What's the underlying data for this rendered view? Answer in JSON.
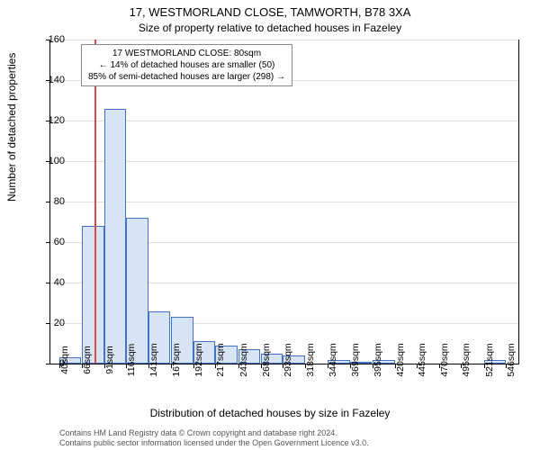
{
  "chart": {
    "type": "histogram",
    "title": "17, WESTMORLAND CLOSE, TAMWORTH, B78 3XA",
    "subtitle": "Size of property relative to detached houses in Fazeley",
    "ylabel": "Number of detached properties",
    "xlabel": "Distribution of detached houses by size in Fazeley",
    "background_color": "#ffffff",
    "grid_color": "#e0e0e0",
    "bar_fill": "#d6e4f5",
    "bar_stroke": "#4472c4",
    "marker_color": "#d94a4a",
    "title_fontsize": 13,
    "subtitle_fontsize": 12,
    "label_fontsize": 12,
    "tick_fontsize": 11,
    "ylim": [
      0,
      160
    ],
    "ytick_step": 20,
    "yticks": [
      0,
      20,
      40,
      60,
      80,
      100,
      120,
      140,
      160
    ],
    "xtick_labels": [
      "40sqm",
      "66sqm",
      "91sqm",
      "116sqm",
      "141sqm",
      "167sqm",
      "192sqm",
      "217sqm",
      "243sqm",
      "268sqm",
      "293sqm",
      "318sqm",
      "344sqm",
      "369sqm",
      "395sqm",
      "420sqm",
      "445sqm",
      "470sqm",
      "495sqm",
      "521sqm",
      "546sqm"
    ],
    "xtick_positions": [
      40,
      66,
      91,
      116,
      141,
      167,
      192,
      217,
      243,
      268,
      293,
      318,
      344,
      369,
      395,
      420,
      445,
      470,
      495,
      521,
      546
    ],
    "x_range": [
      30,
      560
    ],
    "bin_width": 25,
    "bars": [
      {
        "x_left": 40,
        "count": 3
      },
      {
        "x_left": 66,
        "count": 68
      },
      {
        "x_left": 91,
        "count": 126
      },
      {
        "x_left": 116,
        "count": 72
      },
      {
        "x_left": 141,
        "count": 26
      },
      {
        "x_left": 167,
        "count": 23
      },
      {
        "x_left": 192,
        "count": 11
      },
      {
        "x_left": 217,
        "count": 9
      },
      {
        "x_left": 243,
        "count": 7
      },
      {
        "x_left": 268,
        "count": 5
      },
      {
        "x_left": 293,
        "count": 4
      },
      {
        "x_left": 344,
        "count": 2
      },
      {
        "x_left": 369,
        "count": 1
      },
      {
        "x_left": 395,
        "count": 2
      },
      {
        "x_left": 521,
        "count": 2
      }
    ],
    "marker_position": 80,
    "annotation": {
      "line1": "17 WESTMORLAND CLOSE: 80sqm",
      "line2": "← 14% of detached houses are smaller (50)",
      "line3": "85% of semi-detached houses are larger (298) →"
    }
  },
  "footer": {
    "line1": "Contains HM Land Registry data © Crown copyright and database right 2024.",
    "line2": "Contains public sector information licensed under the Open Government Licence v3.0."
  }
}
